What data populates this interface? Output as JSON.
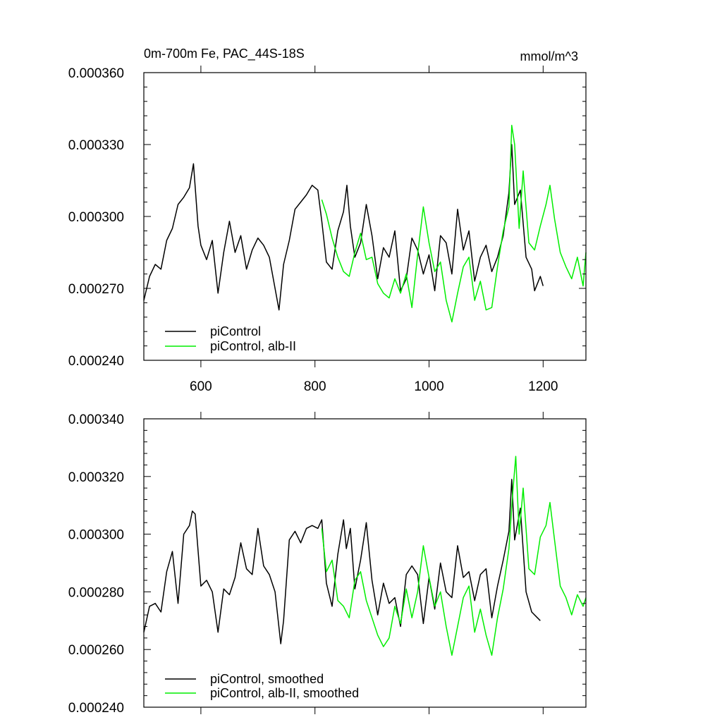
{
  "chart_data": [
    {
      "type": "line",
      "title": "0m-700m Fe, PAC_44S-18S",
      "units": "mmol/m^3",
      "xlim": [
        500,
        1275
      ],
      "ylim": [
        0.00024,
        0.00036
      ],
      "xticks": [
        600,
        800,
        1000,
        1200
      ],
      "xtick_labels": [
        "600",
        "800",
        "1000",
        "1200"
      ],
      "yticks": [
        0.00024,
        0.00027,
        0.0003,
        0.00033,
        0.00036
      ],
      "ytick_labels": [
        "0.000240",
        "0.000270",
        "0.000300",
        "0.000330",
        "0.000360"
      ],
      "legend_position": "bottom-left",
      "series": [
        {
          "name": "piControl",
          "color": "#000000",
          "x": [
            500,
            510,
            520,
            530,
            540,
            550,
            560,
            570,
            580,
            587,
            595,
            600,
            610,
            620,
            630,
            640,
            650,
            660,
            670,
            680,
            690,
            700,
            710,
            720,
            730,
            737,
            745,
            755,
            765,
            775,
            785,
            795,
            805,
            812,
            820,
            830,
            840,
            850,
            856,
            862,
            870,
            880,
            890,
            900,
            910,
            920,
            930,
            940,
            950,
            960,
            970,
            980,
            990,
            1000,
            1010,
            1020,
            1030,
            1040,
            1050,
            1060,
            1070,
            1080,
            1090,
            1100,
            1110,
            1120,
            1130,
            1140,
            1145,
            1150,
            1160,
            1170,
            1180,
            1185,
            1195,
            1200
          ],
          "values": [
            0.000265,
            0.000275,
            0.00028,
            0.000278,
            0.00029,
            0.000295,
            0.000305,
            0.000308,
            0.000312,
            0.000322,
            0.000296,
            0.000288,
            0.000282,
            0.00029,
            0.000268,
            0.000285,
            0.000298,
            0.000285,
            0.000292,
            0.000278,
            0.000286,
            0.000291,
            0.000288,
            0.000283,
            0.00027,
            0.000261,
            0.00028,
            0.00029,
            0.000303,
            0.000306,
            0.000309,
            0.000313,
            0.000311,
            0.000298,
            0.000281,
            0.000278,
            0.000294,
            0.000302,
            0.000313,
            0.000296,
            0.000283,
            0.000289,
            0.000305,
            0.000292,
            0.000274,
            0.000287,
            0.000283,
            0.000294,
            0.000269,
            0.000274,
            0.000291,
            0.000286,
            0.000276,
            0.000284,
            0.000269,
            0.000292,
            0.000289,
            0.000276,
            0.000303,
            0.000286,
            0.000294,
            0.000273,
            0.000283,
            0.000288,
            0.000277,
            0.000283,
            0.000292,
            0.00031,
            0.00033,
            0.000305,
            0.000311,
            0.000283,
            0.000278,
            0.000269,
            0.000275,
            0.000271
          ]
        },
        {
          "name": "piControl, alb-II",
          "color": "#00ee00",
          "x": [
            812,
            820,
            830,
            840,
            850,
            860,
            870,
            880,
            890,
            900,
            910,
            920,
            930,
            940,
            950,
            960,
            970,
            980,
            990,
            1000,
            1010,
            1020,
            1030,
            1040,
            1050,
            1060,
            1070,
            1080,
            1090,
            1100,
            1110,
            1120,
            1130,
            1140,
            1145,
            1150,
            1158,
            1165,
            1175,
            1185,
            1195,
            1205,
            1212,
            1220,
            1230,
            1240,
            1250,
            1260,
            1270,
            1275
          ],
          "values": [
            0.000307,
            0.000301,
            0.000291,
            0.000283,
            0.000277,
            0.000275,
            0.000285,
            0.000293,
            0.000282,
            0.000283,
            0.000272,
            0.000268,
            0.000266,
            0.000274,
            0.000268,
            0.000276,
            0.000262,
            0.000284,
            0.000304,
            0.000289,
            0.000277,
            0.000281,
            0.000265,
            0.000256,
            0.000268,
            0.000279,
            0.000283,
            0.000265,
            0.000273,
            0.000261,
            0.000262,
            0.000279,
            0.000294,
            0.000304,
            0.000338,
            0.00033,
            0.000295,
            0.000319,
            0.000289,
            0.000286,
            0.000296,
            0.000305,
            0.000313,
            0.000299,
            0.000285,
            0.000279,
            0.000274,
            0.000283,
            0.000271,
            0.000285
          ]
        }
      ]
    },
    {
      "type": "line",
      "title": "",
      "xlim": [
        500,
        1275
      ],
      "ylim": [
        0.00024,
        0.00034
      ],
      "xticks": [
        600,
        800,
        1000,
        1200
      ],
      "yticks": [
        0.00024,
        0.00026,
        0.00028,
        0.0003,
        0.00032,
        0.00034
      ],
      "ytick_labels": [
        "0.000240",
        "0.000260",
        "0.000280",
        "0.000300",
        "0.000320",
        "0.000340"
      ],
      "legend_position": "bottom-left",
      "series": [
        {
          "name": "piControl, smoothed",
          "color": "#000000",
          "x": [
            500,
            510,
            520,
            530,
            540,
            550,
            560,
            570,
            580,
            585,
            590,
            600,
            610,
            620,
            630,
            640,
            650,
            660,
            670,
            680,
            690,
            700,
            710,
            720,
            730,
            740,
            745,
            755,
            765,
            775,
            785,
            795,
            805,
            812,
            820,
            830,
            840,
            850,
            855,
            862,
            870,
            880,
            890,
            900,
            910,
            920,
            930,
            940,
            950,
            960,
            970,
            980,
            990,
            1000,
            1010,
            1020,
            1030,
            1040,
            1050,
            1060,
            1070,
            1080,
            1090,
            1100,
            1110,
            1120,
            1130,
            1140,
            1145,
            1150,
            1160,
            1170,
            1180,
            1190,
            1195
          ],
          "values": [
            0.000266,
            0.000275,
            0.000276,
            0.000273,
            0.000287,
            0.000294,
            0.000276,
            0.0003,
            0.000303,
            0.000308,
            0.000307,
            0.000282,
            0.000284,
            0.00028,
            0.000266,
            0.000281,
            0.000279,
            0.000285,
            0.000297,
            0.000288,
            0.000286,
            0.000302,
            0.000289,
            0.000286,
            0.00028,
            0.000262,
            0.00027,
            0.000298,
            0.000301,
            0.000297,
            0.000302,
            0.000303,
            0.000302,
            0.000305,
            0.000283,
            0.000275,
            0.000293,
            0.000305,
            0.000295,
            0.000302,
            0.000281,
            0.000291,
            0.000304,
            0.000284,
            0.000272,
            0.000283,
            0.000276,
            0.000278,
            0.000268,
            0.000286,
            0.000289,
            0.000286,
            0.000269,
            0.000285,
            0.000274,
            0.00029,
            0.00028,
            0.000278,
            0.000296,
            0.000285,
            0.000287,
            0.000277,
            0.000286,
            0.000288,
            0.000271,
            0.000282,
            0.000291,
            0.000301,
            0.000319,
            0.000298,
            0.000309,
            0.00028,
            0.000273,
            0.000271,
            0.00027
          ]
        },
        {
          "name": "piControl, alb-II, smoothed",
          "color": "#00ee00",
          "x": [
            812,
            820,
            830,
            840,
            850,
            860,
            870,
            880,
            890,
            900,
            910,
            920,
            930,
            940,
            950,
            960,
            970,
            980,
            990,
            1000,
            1010,
            1020,
            1030,
            1040,
            1050,
            1060,
            1070,
            1080,
            1090,
            1100,
            1110,
            1120,
            1130,
            1140,
            1147,
            1152,
            1158,
            1165,
            1175,
            1185,
            1195,
            1205,
            1212,
            1220,
            1230,
            1240,
            1250,
            1260,
            1270,
            1275
          ],
          "values": [
            0.000302,
            0.000287,
            0.000291,
            0.000277,
            0.000275,
            0.000271,
            0.000284,
            0.000287,
            0.000277,
            0.000271,
            0.000265,
            0.000261,
            0.000264,
            0.000275,
            0.000269,
            0.000281,
            0.000271,
            0.00028,
            0.000296,
            0.000285,
            0.000275,
            0.00028,
            0.000268,
            0.000258,
            0.000268,
            0.000278,
            0.000282,
            0.000266,
            0.000274,
            0.000265,
            0.000258,
            0.000271,
            0.000281,
            0.000295,
            0.000315,
            0.000327,
            0.0003,
            0.000316,
            0.000288,
            0.000286,
            0.000299,
            0.000303,
            0.000311,
            0.000298,
            0.000282,
            0.000278,
            0.000272,
            0.000279,
            0.000275,
            0.000278
          ]
        }
      ]
    }
  ]
}
